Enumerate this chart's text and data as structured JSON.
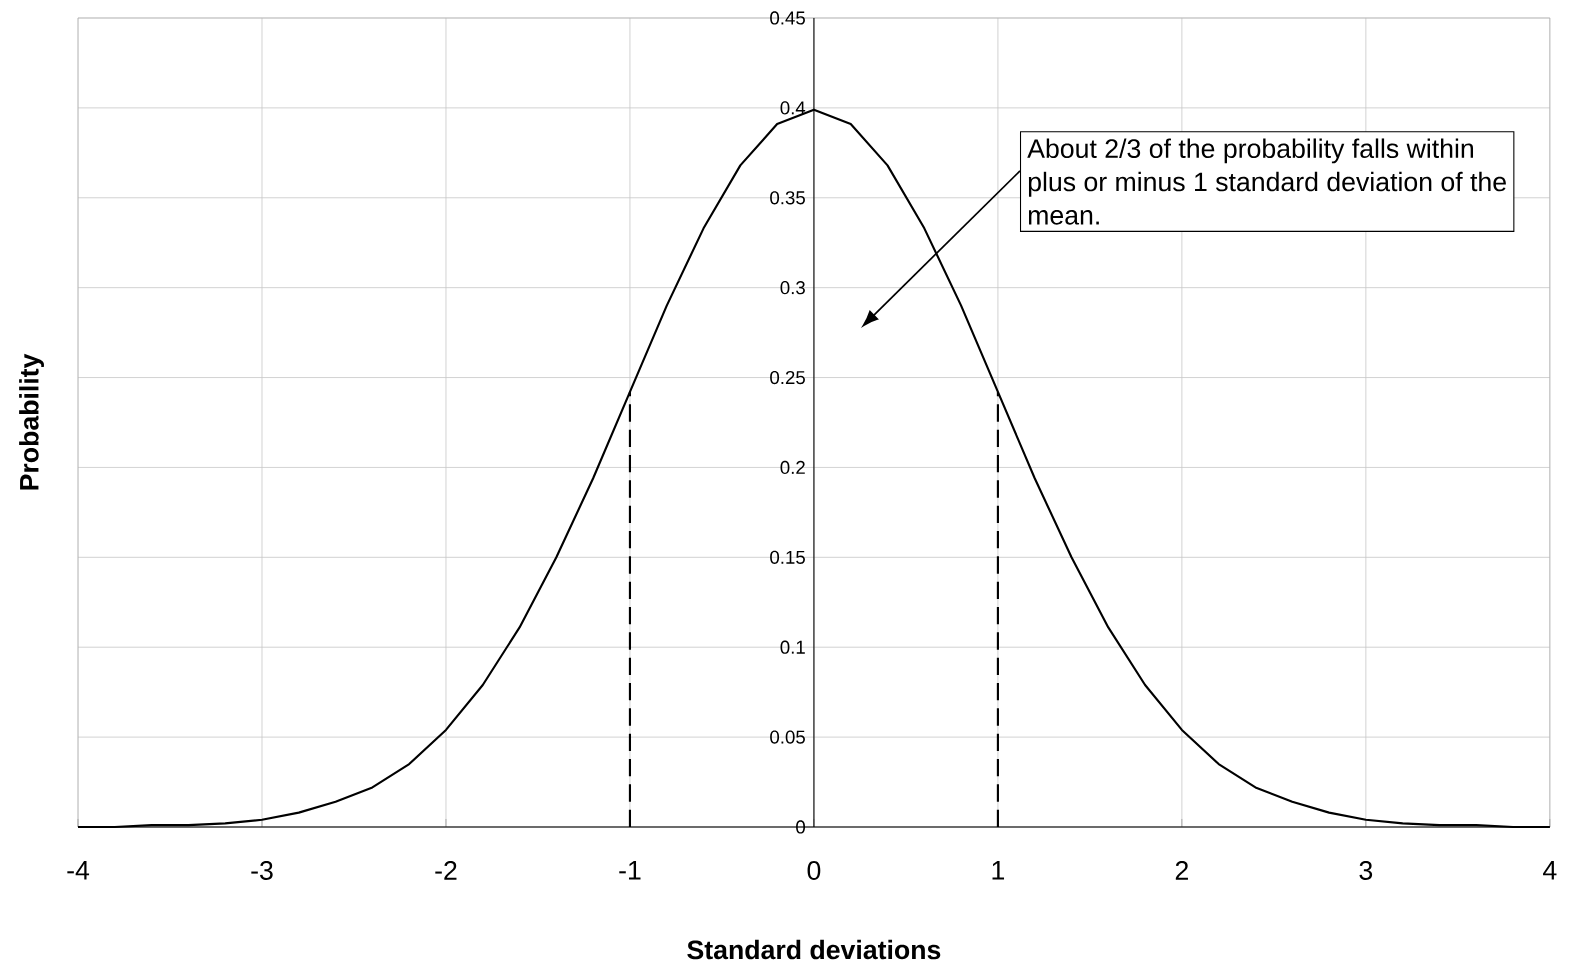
{
  "chart_data": {
    "type": "line",
    "xlabel": "Standard deviations",
    "ylabel": "Probability",
    "xlim": [
      -4,
      4
    ],
    "xticks": [
      -4,
      -3,
      -2,
      -1,
      0,
      1,
      2,
      3,
      4
    ],
    "ylim": [
      0,
      0.45
    ],
    "yticks": [
      0,
      0.05,
      0.1,
      0.15,
      0.2,
      0.25,
      0.3,
      0.35,
      0.4,
      0.45
    ],
    "grid": true,
    "series": [
      {
        "color": "#000000",
        "line_style": "solid",
        "x": [
          -4,
          -3.8,
          -3.6,
          -3.4,
          -3.2,
          -3,
          -2.8,
          -2.6,
          -2.4,
          -2.2,
          -2,
          -1.8,
          -1.6,
          -1.4,
          -1.2,
          -1,
          -0.8,
          -0.6,
          -0.4,
          -0.2,
          0,
          0.2,
          0.4,
          0.6,
          0.8,
          1,
          1.2,
          1.4,
          1.6,
          1.8,
          2,
          2.2,
          2.4,
          2.6,
          2.8,
          3,
          3.2,
          3.4,
          3.6,
          3.8,
          4
        ],
        "values": [
          0.0,
          0.0,
          0.001,
          0.001,
          0.002,
          0.004,
          0.008,
          0.014,
          0.022,
          0.035,
          0.054,
          0.079,
          0.111,
          0.15,
          0.194,
          0.242,
          0.29,
          0.333,
          0.368,
          0.391,
          0.399,
          0.391,
          0.368,
          0.333,
          0.29,
          0.242,
          0.194,
          0.15,
          0.111,
          0.079,
          0.054,
          0.035,
          0.022,
          0.014,
          0.008,
          0.004,
          0.002,
          0.001,
          0.001,
          0.0,
          0.0
        ]
      },
      {
        "color": "#000000",
        "line_style": "dashed",
        "x": [
          -1,
          -1
        ],
        "values": [
          0,
          0.242
        ]
      },
      {
        "color": "#000000",
        "line_style": "dashed",
        "x": [
          1,
          1
        ],
        "values": [
          0,
          0.242
        ]
      }
    ],
    "annotations": [
      "About 2/3 of the probability falls within plus or minus 1 standard deviation of the mean."
    ]
  }
}
